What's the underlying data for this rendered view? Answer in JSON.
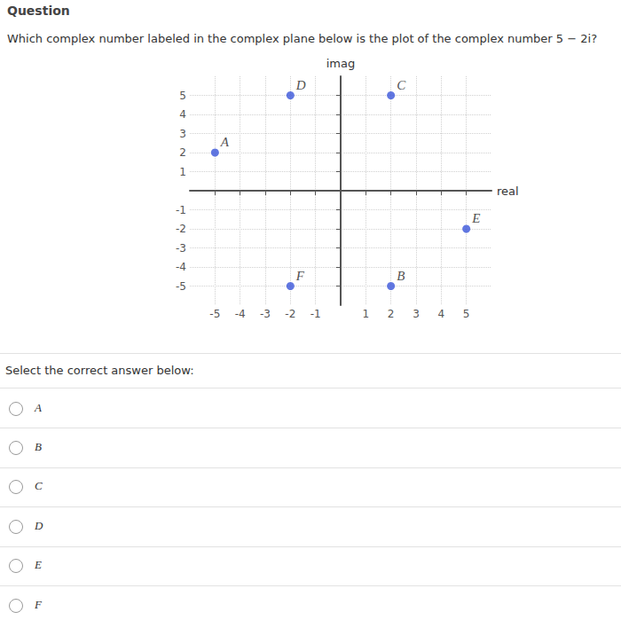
{
  "header": "Question",
  "question": "Which complex number labeled in the complex plane below is the plot of the complex number 5 − 2i?",
  "chart_data": {
    "type": "scatter",
    "x_label": "real",
    "y_label": "imag",
    "points": [
      {
        "label": "A",
        "x": -5,
        "y": 2
      },
      {
        "label": "B",
        "x": 2,
        "y": -5
      },
      {
        "label": "C",
        "x": 2,
        "y": 5
      },
      {
        "label": "D",
        "x": -2,
        "y": 5
      },
      {
        "label": "E",
        "x": 5,
        "y": -2
      },
      {
        "label": "F",
        "x": -2,
        "y": -5
      }
    ],
    "color": "#3a55d9",
    "xlim": [
      -6,
      6
    ],
    "xticks": [
      -5,
      -4,
      -3,
      -2,
      -1,
      1,
      2,
      3,
      4,
      5
    ],
    "ylim": [
      -6,
      6
    ],
    "yticks": [
      -5,
      -4,
      -3,
      -2,
      -1,
      1,
      2,
      3,
      4,
      5
    ],
    "grid": true
  },
  "prompt": "Select the correct answer below:",
  "options": [
    "A",
    "B",
    "C",
    "D",
    "E",
    "F"
  ]
}
